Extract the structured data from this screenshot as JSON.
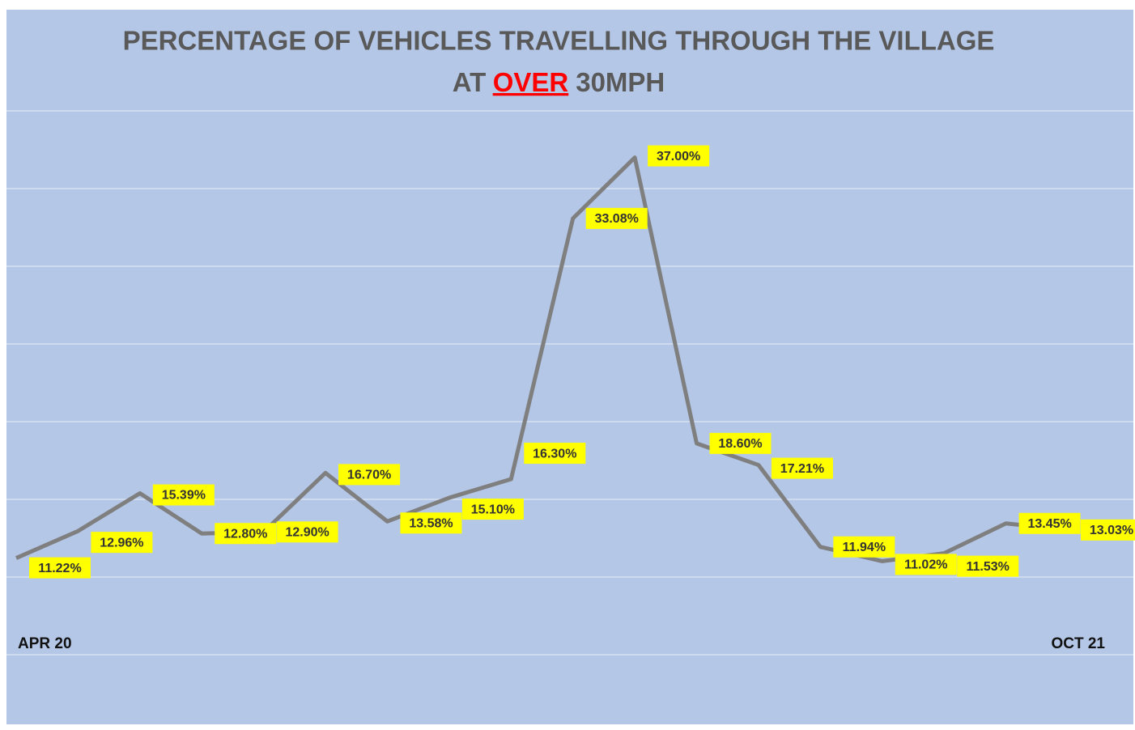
{
  "chart_data": {
    "type": "line",
    "title": "PERCENTAGE OF VEHICLES TRAVELLING THROUGH THE VILLAGE",
    "subtitle_parts": [
      "AT",
      "OVER",
      "30MPH"
    ],
    "categories": [
      "APR 20",
      null,
      null,
      null,
      null,
      null,
      null,
      null,
      null,
      null,
      null,
      null,
      null,
      null,
      null,
      null,
      null,
      "OCT 21"
    ],
    "series": [
      {
        "name": "Over 30mph",
        "color": "#7f7f7f",
        "values": [
          11.22,
          12.96,
          15.39,
          12.8,
          12.9,
          16.7,
          13.58,
          15.1,
          16.3,
          33.08,
          37.0,
          18.6,
          17.21,
          11.94,
          11.02,
          11.53,
          13.45,
          13.03
        ],
        "value_labels": [
          "11.22%",
          "12.96%",
          "15.39%",
          "12.80%",
          "12.90%",
          "16.70%",
          "13.58%",
          "15.10%",
          "16.30%",
          "33.08%",
          "37.00%",
          "18.60%",
          "17.21%",
          "11.94%",
          "11.02%",
          "11.53%",
          "13.45%",
          "13.03%"
        ]
      }
    ],
    "ylim": [
      5,
      40
    ],
    "yticks": [
      5,
      10,
      15,
      20,
      25,
      30,
      35,
      40
    ],
    "grid": true,
    "label_color": "#ffff00"
  }
}
